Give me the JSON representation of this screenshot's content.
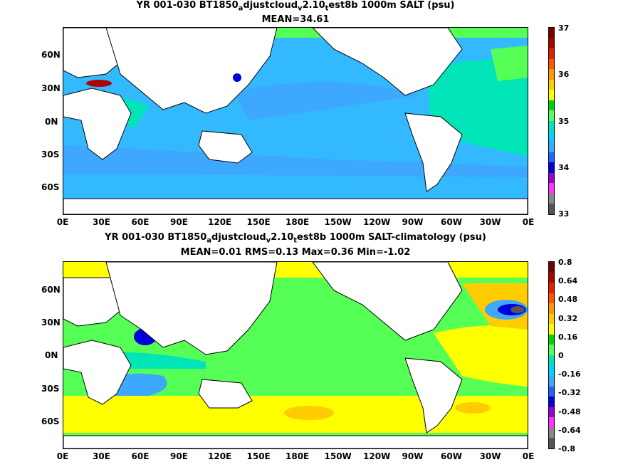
{
  "chart_data": [
    {
      "type": "heatmap",
      "title_parts": [
        "YR 001-030 BT1850",
        "a",
        "djustcloud",
        "v",
        "2.10",
        "t",
        "est8b 1000m SALT (psu)"
      ],
      "subtitle": "MEAN=34.61",
      "x_ticks": [
        "0E",
        "30E",
        "60E",
        "90E",
        "120E",
        "150E",
        "180E",
        "150W",
        "120W",
        "90W",
        "60W",
        "30W",
        "0E"
      ],
      "y_ticks": [
        "60N",
        "30N",
        "0N",
        "30S",
        "60S"
      ],
      "colorbar": {
        "labels": [
          "37",
          "36",
          "35",
          "34",
          "33"
        ],
        "colors": [
          "#7a0000",
          "#b00000",
          "#e02000",
          "#ff5500",
          "#ff9900",
          "#ffcc00",
          "#ffff00",
          "#00d400",
          "#55ff55",
          "#00e5b8",
          "#00d2ff",
          "#3ea8ff",
          "#1e64ff",
          "#0000dd",
          "#9900cc",
          "#ff33ff",
          "#888888",
          "#555555"
        ]
      },
      "regions": [
        {
          "name": "background-ocean",
          "value": "34.6-34.7",
          "color": "#33b9ff"
        },
        {
          "name": "southern-ocean-band",
          "value": "34.4",
          "color": "#3a99ff"
        },
        {
          "name": "north-pacific-tongue",
          "value": "34.3",
          "color": "#3a99ff"
        },
        {
          "name": "atlantic",
          "value": "34.9-35.1",
          "color": "#00e5b8"
        },
        {
          "name": "arctic",
          "value": "35.0",
          "color": "#55ff55"
        },
        {
          "name": "mediterranean-outflow",
          "value": "36.5",
          "color": "#b00000"
        },
        {
          "name": "japan-sea",
          "value": "34.0",
          "color": "#0000dd"
        }
      ]
    },
    {
      "type": "heatmap",
      "title_parts": [
        "YR 001-030 BT1850",
        "a",
        "djustcloud",
        "v",
        "2.10",
        "t",
        "est8b 1000m SALT-climatology (psu)"
      ],
      "subtitle": "MEAN=0.01   RMS=0.13   Max=0.36   Min=-1.02",
      "x_ticks": [
        "0E",
        "30E",
        "60E",
        "90E",
        "120E",
        "150E",
        "180E",
        "150W",
        "120W",
        "90W",
        "60W",
        "30W",
        "0E"
      ],
      "y_ticks": [
        "60N",
        "30N",
        "0N",
        "30S",
        "60S"
      ],
      "colorbar": {
        "labels": [
          "0.8",
          "0.64",
          "0.48",
          "0.32",
          "0.16",
          "0",
          "-0.16",
          "-0.32",
          "-0.48",
          "-0.64",
          "-0.8"
        ],
        "colors": [
          "#7a0000",
          "#b00000",
          "#e02000",
          "#ff5500",
          "#ff9900",
          "#ffcc00",
          "#ffff00",
          "#00d400",
          "#55ff55",
          "#00e5b8",
          "#00d2ff",
          "#3ea8ff",
          "#1e64ff",
          "#0000dd",
          "#9900cc",
          "#ff33ff",
          "#888888",
          "#555555"
        ]
      },
      "regions": [
        {
          "name": "background-ocean",
          "value": "0.0-0.1",
          "color": "#55ff55"
        },
        {
          "name": "southern-ocean-band",
          "value": "0.2-0.4",
          "color": "#ffcc00"
        },
        {
          "name": "arabian-sea",
          "value": "-0.5",
          "color": "#0000dd"
        },
        {
          "name": "north-atlantic",
          "value": "-1.0",
          "color": "#555555"
        },
        {
          "name": "subtropical-atlantic",
          "value": "0.2",
          "color": "#ffff00"
        },
        {
          "name": "arctic",
          "value": "0.3",
          "color": "#ffff00"
        }
      ]
    }
  ]
}
